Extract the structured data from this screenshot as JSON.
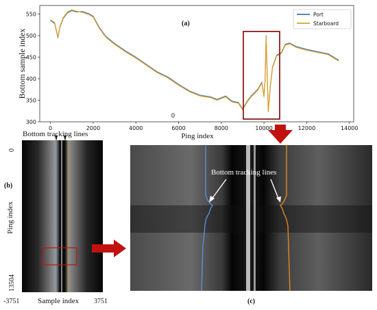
{
  "chart_data": {
    "type": "line",
    "title": "",
    "xlabel": "Ping index",
    "ylabel": "Bottom sample index",
    "xlim": [
      -500,
      14200
    ],
    "ylim": [
      300,
      570
    ],
    "xticks": [
      0,
      2000,
      4000,
      6000,
      8000,
      10000,
      12000,
      14000
    ],
    "yticks": [
      300,
      350,
      400,
      450,
      500,
      550
    ],
    "grid": false,
    "legend": "top-right",
    "series": [
      {
        "name": "Port",
        "color": "#3b6fb6",
        "x": [
          0,
          200,
          350,
          450,
          600,
          800,
          1000,
          1200,
          1500,
          1800,
          2000,
          2300,
          2600,
          3000,
          3500,
          4000,
          4500,
          5000,
          5500,
          6000,
          6500,
          7000,
          7500,
          7800,
          8200,
          8500,
          8800,
          9000,
          9200,
          9400,
          9700,
          9900,
          10000,
          10050,
          10100,
          10150,
          10200,
          10300,
          10400,
          10600,
          10800,
          11000,
          11200,
          11500,
          12000,
          12500,
          13000,
          13500
        ],
        "y": [
          535,
          528,
          495,
          520,
          540,
          553,
          558,
          555,
          556,
          551,
          545,
          518,
          498,
          482,
          465,
          450,
          433,
          416,
          404,
          387,
          372,
          362,
          358,
          352,
          360,
          348,
          345,
          330,
          347,
          360,
          375,
          392,
          360,
          395,
          500,
          410,
          325,
          385,
          428,
          455,
          460,
          480,
          483,
          475,
          468,
          463,
          458,
          443
        ]
      },
      {
        "name": "Starboard",
        "color": "#e0a020",
        "x": [
          0,
          200,
          350,
          450,
          600,
          800,
          1000,
          1200,
          1500,
          1800,
          2000,
          2300,
          2600,
          3000,
          3500,
          4000,
          4500,
          5000,
          5500,
          6000,
          6500,
          7000,
          7500,
          7800,
          8200,
          8500,
          8800,
          9000,
          9200,
          9400,
          9700,
          9900,
          10000,
          10050,
          10100,
          10150,
          10200,
          10300,
          10400,
          10600,
          10800,
          11000,
          11200,
          11500,
          12000,
          12500,
          13000,
          13500
        ],
        "y": [
          537,
          530,
          497,
          522,
          542,
          555,
          560,
          557,
          554,
          549,
          543,
          516,
          496,
          480,
          463,
          448,
          431,
          414,
          402,
          385,
          370,
          360,
          356,
          350,
          358,
          346,
          343,
          328,
          345,
          358,
          373,
          390,
          358,
          393,
          498,
          408,
          323,
          383,
          426,
          453,
          458,
          478,
          481,
          473,
          466,
          461,
          456,
          441
        ]
      }
    ],
    "annotations": [
      {
        "label": "0"
      },
      {
        "label": "Bottom tracking lines"
      }
    ]
  },
  "figure": {
    "label_a": "(a)",
    "label_b": "(b)",
    "label_c": "(c)",
    "b_ylabel": "Ping index",
    "b_xlabel": "Sample index",
    "b_ytop": "0",
    "b_ybottom": "13504",
    "b_xleft": "-3751",
    "b_xright": "3751",
    "b_tracking_label": "Bottom tracking lines",
    "c_tracking_label": "Bottom tracking lines",
    "highlight_color": "#8b1a1a",
    "arrow_color": "#c0130f"
  }
}
